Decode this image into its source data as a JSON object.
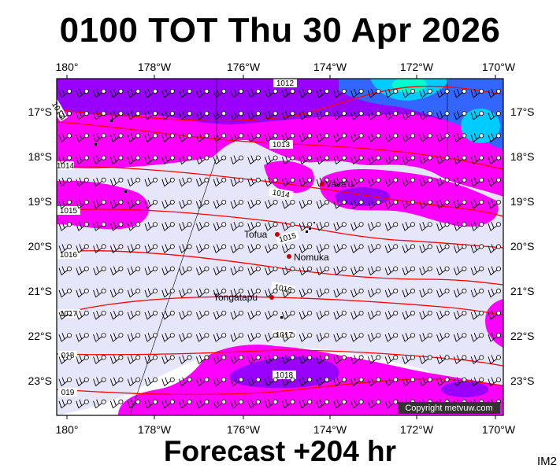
{
  "title": "0100 TOT Thu 30 Apr 2026",
  "footer": "Forecast +204 hr",
  "code": "IM2",
  "copyright": "Copyright metvuw.com",
  "lon_labels": [
    "180°",
    "178°W",
    "176°W",
    "174°W",
    "172°W",
    "170°W"
  ],
  "lat_labels": [
    "17°S",
    "18°S",
    "19°S",
    "20°S",
    "21°S",
    "22°S",
    "23°S"
  ],
  "places": [
    {
      "name": "Vava'u",
      "lon": -174.0,
      "lat": -18.65
    },
    {
      "name": "Tofua",
      "lon": -175.05,
      "lat": -19.75
    },
    {
      "name": "Nomuka",
      "lon": -174.8,
      "lat": -20.25
    },
    {
      "name": "Tongatapu",
      "lon": -175.2,
      "lat": -21.15
    }
  ],
  "isobars": [
    {
      "label": "1012"
    },
    {
      "label": "1013"
    },
    {
      "label": "1013"
    },
    {
      "label": "1014"
    },
    {
      "label": "1014"
    },
    {
      "label": "1015"
    },
    {
      "label": "1015"
    },
    {
      "label": "1016"
    },
    {
      "label": "1016"
    },
    {
      "label": "1017"
    },
    {
      "label": "1017"
    },
    {
      "label": "018"
    },
    {
      "label": "1018"
    },
    {
      "label": "019"
    }
  ],
  "colors": {
    "rain_light": "#e6e6fa",
    "rain_medium": "#ff00ff",
    "rain_heavy": "#9900ff",
    "rain_deep": "#3366ff",
    "rain_extreme": "#00ffcc",
    "isobar": "#ff0000",
    "place_dot": "#cc0000"
  }
}
